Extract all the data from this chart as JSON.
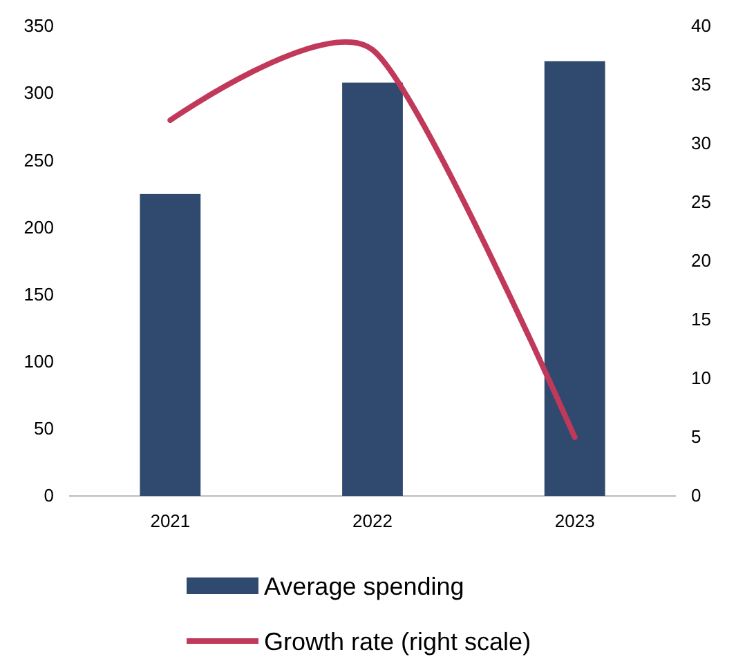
{
  "chart_data": {
    "type": "bar",
    "categories": [
      "2021",
      "2022",
      "2023"
    ],
    "series": [
      {
        "name": "Average spending",
        "color": "#2f4a6e",
        "values": [
          225,
          308,
          324
        ]
      },
      {
        "name": "Growth rate (right scale)",
        "type": "line",
        "axis": "y2",
        "color": "#c0395a",
        "values": [
          32,
          38,
          5
        ]
      }
    ],
    "ylim": [
      0,
      350
    ],
    "yticks": [
      0,
      50,
      100,
      150,
      200,
      250,
      300,
      350
    ],
    "y2lim": [
      0,
      40
    ],
    "y2ticks": [
      0,
      5,
      10,
      15,
      20,
      25,
      30,
      35,
      40
    ],
    "legend": "bottom",
    "grid": false
  }
}
